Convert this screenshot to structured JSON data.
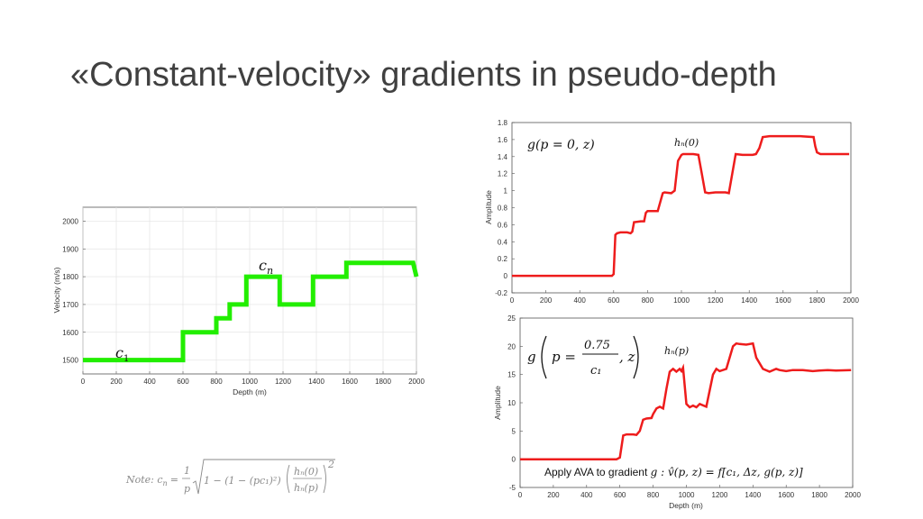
{
  "slide": {
    "title": "«Constant-velocity» gradients in pseudo-depth"
  },
  "chart_data": [
    {
      "type": "line",
      "xlabel": "Depth (m)",
      "ylabel": "Velocity (m/s)",
      "xlim": [
        0,
        2000
      ],
      "ylim": [
        1450,
        2050
      ],
      "xticks": [
        0,
        200,
        400,
        600,
        800,
        1000,
        1200,
        1400,
        1600,
        1800,
        2000
      ],
      "yticks": [
        1500,
        1600,
        1700,
        1800,
        1900,
        2000
      ],
      "grid": true,
      "color": "#22ee00",
      "annotations": [
        "c1",
        "cn"
      ],
      "series": [
        {
          "x": [
            0,
            600,
            600,
            800,
            800,
            880,
            880,
            980,
            980,
            1000,
            1180,
            1180,
            1380,
            1380,
            1580,
            1580,
            1980,
            2000
          ],
          "y": [
            1500,
            1500,
            1600,
            1600,
            1650,
            1650,
            1700,
            1700,
            1800,
            1800,
            1800,
            1700,
            1700,
            1800,
            1800,
            1850,
            1850,
            1800
          ]
        }
      ]
    },
    {
      "type": "line",
      "xlabel": "",
      "ylabel": "Amplitude",
      "xlim": [
        0,
        2000
      ],
      "ylim": [
        -0.2,
        1.8
      ],
      "xticks": [
        0,
        200,
        400,
        600,
        800,
        1000,
        1200,
        1400,
        1600,
        1800,
        2000
      ],
      "yticks": [
        -0.2,
        0,
        0.2,
        0.4,
        0.6,
        0.8,
        1,
        1.2,
        1.4,
        1.6,
        1.8
      ],
      "grid": false,
      "color": "#ee1c1c",
      "annotations": [
        "g(p = 0, z)",
        "hn(0)"
      ],
      "series": [
        {
          "x": [
            0,
            590,
            600,
            610,
            620,
            640,
            680,
            700,
            710,
            720,
            760,
            780,
            790,
            800,
            840,
            860,
            880,
            890,
            900,
            940,
            960,
            980,
            1000,
            1010,
            1020,
            1070,
            1100,
            1120,
            1140,
            1160,
            1200,
            1240,
            1260,
            1280,
            1300,
            1320,
            1360,
            1420,
            1440,
            1460,
            1480,
            1520,
            1600,
            1700,
            1780,
            1790,
            1800,
            1820,
            1900,
            1990
          ],
          "y": [
            0,
            0,
            0.02,
            0.48,
            0.5,
            0.51,
            0.51,
            0.5,
            0.52,
            0.63,
            0.64,
            0.64,
            0.74,
            0.76,
            0.76,
            0.76,
            0.9,
            0.97,
            0.98,
            0.97,
            1.0,
            1.35,
            1.42,
            1.43,
            1.43,
            1.43,
            1.42,
            1.2,
            0.98,
            0.97,
            0.98,
            0.98,
            0.98,
            0.97,
            1.2,
            1.43,
            1.42,
            1.42,
            1.43,
            1.5,
            1.63,
            1.64,
            1.64,
            1.64,
            1.63,
            1.52,
            1.45,
            1.43,
            1.43,
            1.43
          ]
        }
      ]
    },
    {
      "type": "line",
      "xlabel": "Depth (m)",
      "ylabel": "Amplitude",
      "xlim": [
        0,
        2000
      ],
      "ylim": [
        -5,
        25
      ],
      "xticks": [
        0,
        200,
        400,
        600,
        800,
        1000,
        1200,
        1400,
        1600,
        1800,
        2000
      ],
      "yticks": [
        -5,
        0,
        5,
        10,
        15,
        20,
        25
      ],
      "grid": false,
      "color": "#ee1c1c",
      "annotations": [
        "g(p = 0.75/c1, z)",
        "hn(p)",
        "Apply AVA to gradient g : v̂(p,z) = f[c1, Δz, g(p,z)]"
      ],
      "series": [
        {
          "x": [
            0,
            580,
            600,
            620,
            640,
            680,
            700,
            720,
            740,
            760,
            790,
            800,
            820,
            840,
            860,
            880,
            900,
            920,
            940,
            960,
            970,
            980,
            1000,
            1020,
            1040,
            1060,
            1080,
            1120,
            1160,
            1180,
            1200,
            1240,
            1280,
            1300,
            1320,
            1360,
            1400,
            1420,
            1460,
            1500,
            1540,
            1560,
            1600,
            1640,
            1700,
            1760,
            1800,
            1850,
            1900,
            1990
          ],
          "y": [
            0,
            0,
            0.3,
            4.2,
            4.4,
            4.4,
            4.3,
            5,
            7,
            7.2,
            7.3,
            8,
            9,
            9.3,
            9,
            12.5,
            15.5,
            16,
            15.5,
            16,
            15.6,
            16.2,
            9.8,
            9.2,
            9.5,
            9.2,
            9.8,
            9.3,
            15,
            16,
            15.6,
            16,
            20,
            20.5,
            20.4,
            20.3,
            20.5,
            18,
            16,
            15.5,
            16,
            15.8,
            15.6,
            15.8,
            15.8,
            15.6,
            15.7,
            15.8,
            15.7,
            15.8
          ]
        }
      ]
    }
  ],
  "note": {
    "prefix": "Note:  c",
    "sub_n": "n",
    "eq": "=",
    "num": "1",
    "den": "p",
    "body": "1 − (1 − (pc₁)²)",
    "frac_top": "hₙ(0)",
    "frac_bot": "hₙ(p)",
    "exp": "2"
  },
  "labels": {
    "c1_base": "c",
    "c1_sub": "1",
    "cn_base": "c",
    "cn_sub": "n",
    "g0": "g(p = 0, z)",
    "h0": "hₙ(0)",
    "gp_g": "g",
    "gp_p": "p =",
    "gp_num": "0.75",
    "gp_den": "c₁",
    "gp_z": ", z",
    "hp": "hₙ(p)",
    "ava_text": "Apply AVA to gradient ",
    "ava_math": "g : v̂(p, z) = f[c₁, Δz, g(p, z)]"
  }
}
